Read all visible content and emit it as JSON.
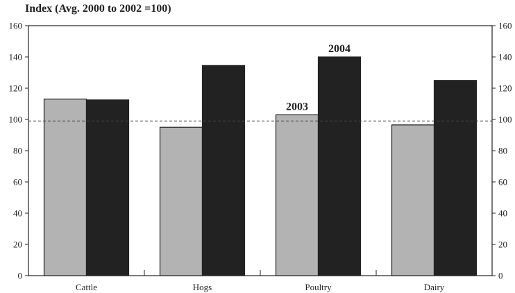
{
  "chart_data": {
    "type": "bar",
    "title": "Index (Avg. 2000 to 2002 =100)",
    "categories": [
      "Cattle",
      "Hogs",
      "Poultry",
      "Dairy"
    ],
    "series": [
      {
        "name": "2003",
        "values": [
          113,
          95,
          103,
          96.5
        ],
        "color": "#b3b3b3"
      },
      {
        "name": "2004",
        "values": [
          112.5,
          134.5,
          140,
          125
        ],
        "color": "#222222"
      }
    ],
    "ylim": [
      0,
      160
    ],
    "yticks": [
      0,
      20,
      40,
      60,
      80,
      100,
      120,
      140,
      160
    ],
    "reference_line": 99,
    "annotations": [
      {
        "text": "2003",
        "category": "Poultry",
        "series": "2003"
      },
      {
        "text": "2004",
        "category": "Poultry",
        "series": "2004"
      }
    ],
    "grid": false,
    "legend": "none"
  }
}
